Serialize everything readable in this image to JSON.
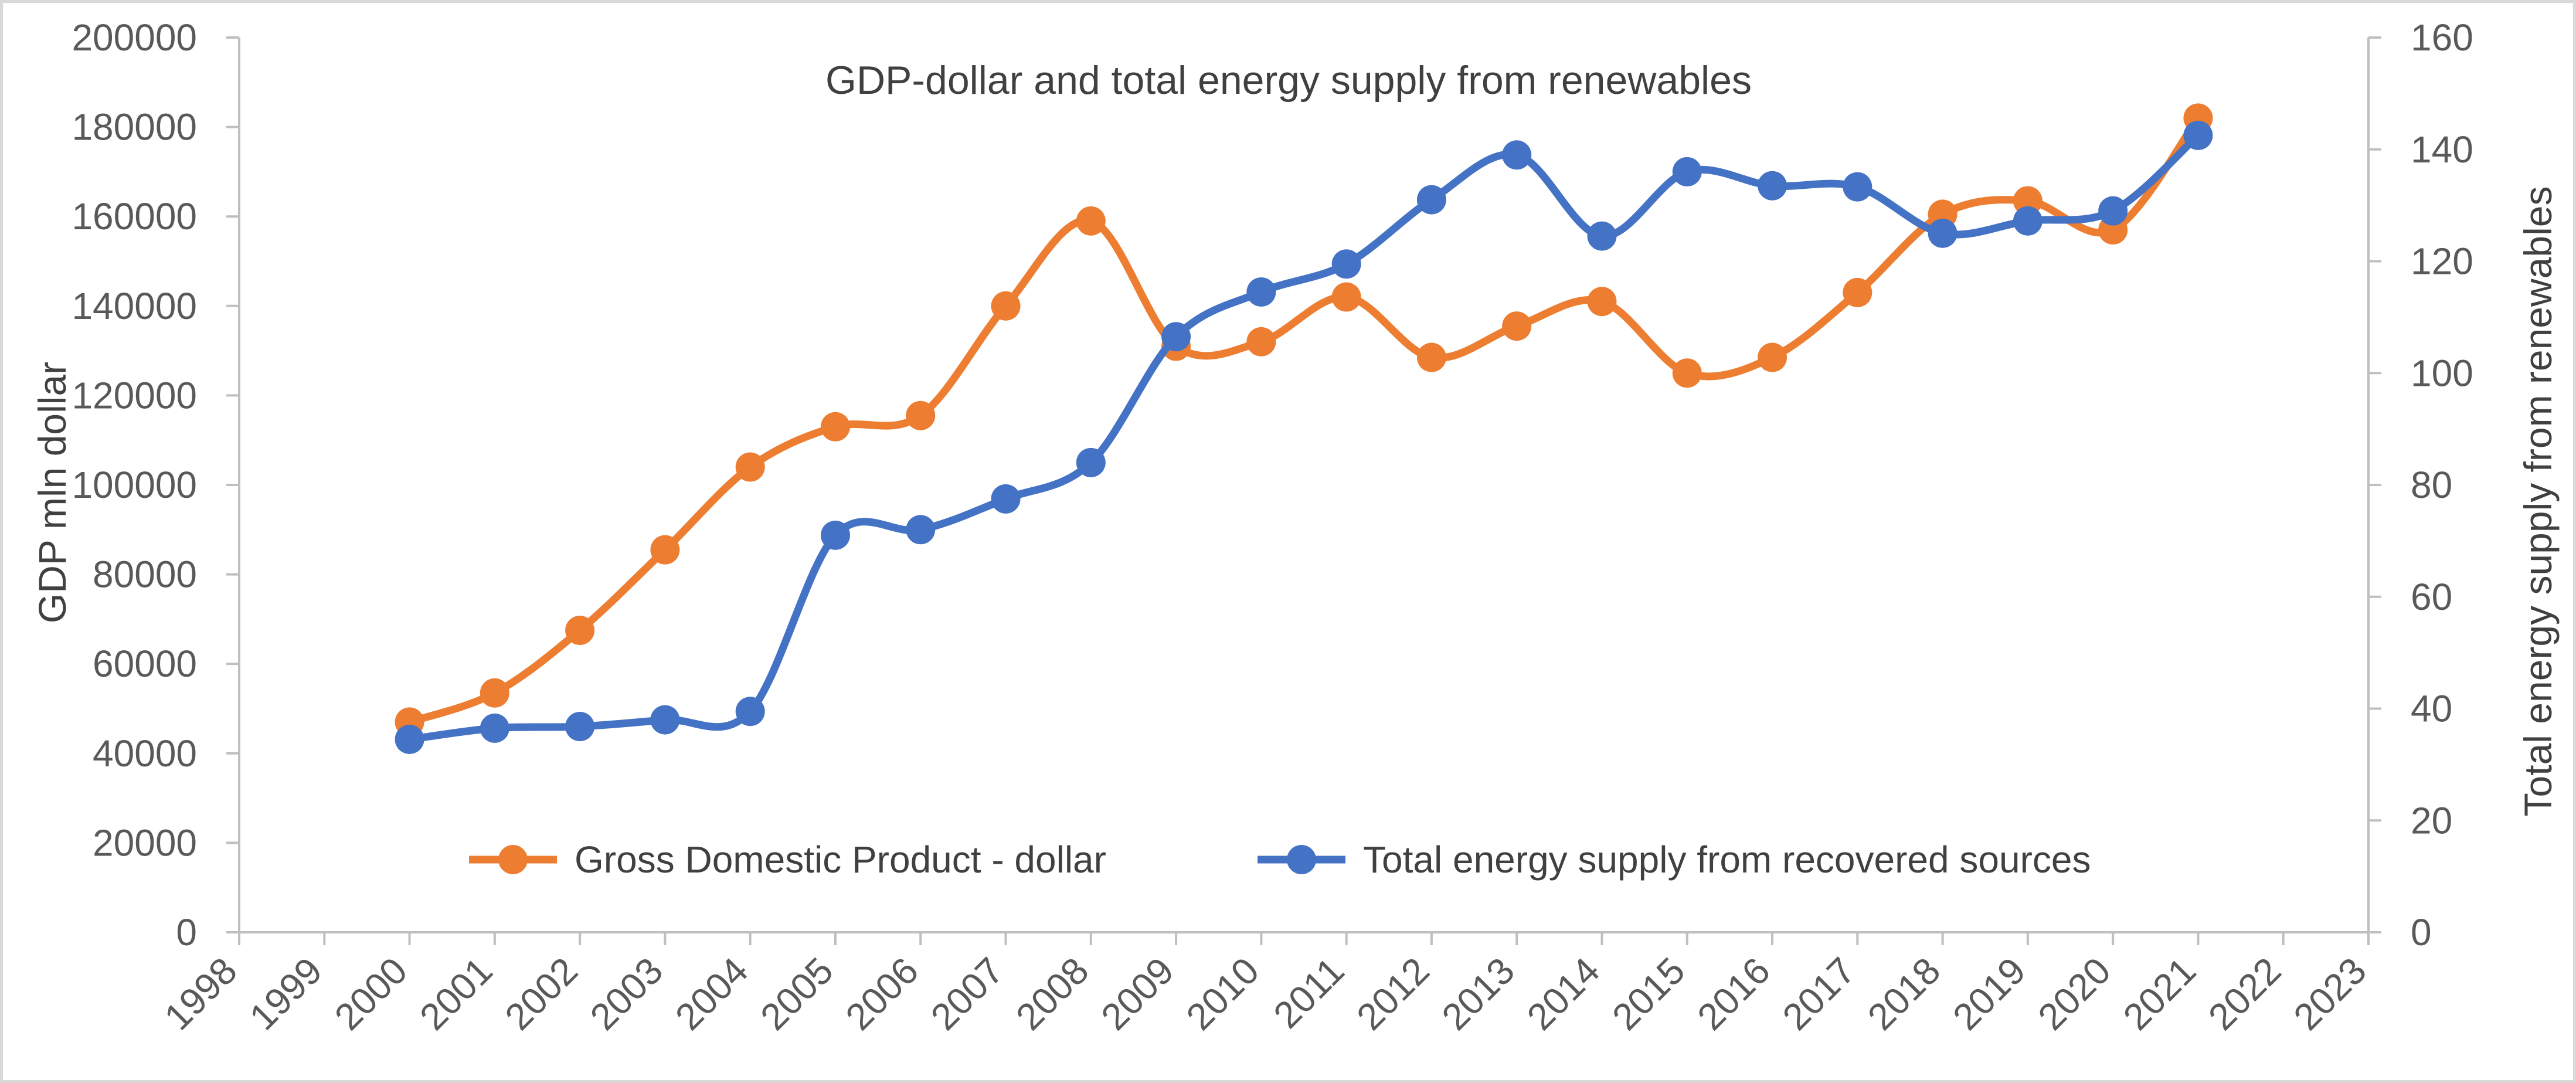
{
  "chart_data": {
    "type": "line",
    "title": "GDP-dollar and total energy supply from renewables",
    "ylabel_left": "GDP mln dollar",
    "ylabel_right": "Total energy supply from renewables",
    "xlim": [
      1998,
      2023
    ],
    "x_ticks": [
      "1998",
      "1999",
      "2000",
      "2001",
      "2002",
      "2003",
      "2004",
      "2005",
      "2006",
      "2007",
      "2008",
      "2009",
      "2010",
      "2011",
      "2012",
      "2013",
      "2014",
      "2015",
      "2016",
      "2017",
      "2018",
      "2019",
      "2020",
      "2021",
      "2022",
      "2023"
    ],
    "ylim_left": [
      0,
      200000
    ],
    "y_ticks_left": [
      "0",
      "20000",
      "40000",
      "60000",
      "80000",
      "100000",
      "120000",
      "140000",
      "160000",
      "180000",
      "200000"
    ],
    "ylim_right": [
      0,
      160
    ],
    "y_ticks_right": [
      "0",
      "20",
      "40",
      "60",
      "80",
      "100",
      "120",
      "140",
      "160"
    ],
    "grid": false,
    "legend_position": "bottom-inside",
    "series": [
      {
        "name": "Gross Domestic Product - dollar",
        "axis": "left",
        "color": "#ED7D31",
        "x": [
          2000,
          2001,
          2002,
          2003,
          2004,
          2005,
          2006,
          2007,
          2008,
          2009,
          2010,
          2011,
          2012,
          2013,
          2014,
          2015,
          2016,
          2017,
          2018,
          2019,
          2020,
          2021
        ],
        "values": [
          47000,
          53500,
          67500,
          85500,
          104000,
          113000,
          115500,
          140000,
          159000,
          131000,
          132000,
          142000,
          128500,
          135500,
          141000,
          125000,
          128500,
          143000,
          160500,
          163500,
          157000,
          182000
        ]
      },
      {
        "name": "Total energy supply from recovered sources",
        "axis": "right",
        "color": "#4472C4",
        "x": [
          2000,
          2001,
          2002,
          2003,
          2004,
          2005,
          2006,
          2007,
          2008,
          2009,
          2010,
          2011,
          2012,
          2013,
          2014,
          2015,
          2016,
          2017,
          2018,
          2019,
          2020,
          2021
        ],
        "values": [
          34.5,
          36.5,
          36.8,
          38,
          39.5,
          71,
          72,
          77.5,
          84,
          106.5,
          114.5,
          119.5,
          131,
          139,
          124.5,
          136,
          133.5,
          133.3,
          125,
          127.2,
          129,
          142.5
        ]
      }
    ]
  }
}
